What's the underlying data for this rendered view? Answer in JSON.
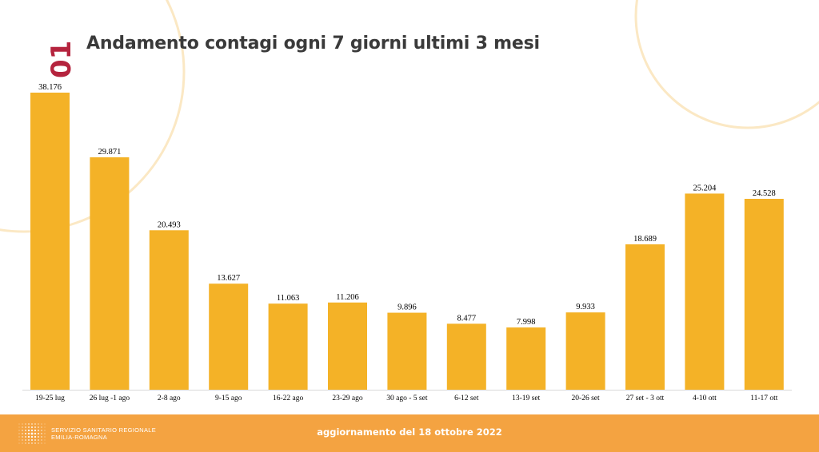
{
  "slide_number": "01",
  "title": "Andamento contagi ogni 7 giorni ultimi 3 mesi",
  "colors": {
    "bar": "#f4b227",
    "accent_number": "#b5243e",
    "footer": "#f4a341",
    "deco_circle": "#fbe8c4"
  },
  "chart_data": {
    "type": "bar",
    "title": "Andamento contagi ogni 7 giorni ultimi 3 mesi",
    "xlabel": "",
    "ylabel": "",
    "grid": false,
    "ylim": [
      0,
      40000
    ],
    "categories": [
      "19-25 lug",
      "26 lug -1 ago",
      "2-8 ago",
      "9-15 ago",
      "16-22 ago",
      "23-29 ago",
      "30 ago - 5 set",
      "6-12 set",
      "13-19 set",
      "20-26 set",
      "27 set - 3 ott",
      "4-10 ott",
      "11-17 ott"
    ],
    "values": [
      38176,
      29871,
      20493,
      13627,
      11063,
      11206,
      9896,
      8477,
      7998,
      9933,
      18689,
      25204,
      24528
    ],
    "data_labels": [
      "38.176",
      "29.871",
      "20.493",
      "13.627",
      "11.063",
      "11.206",
      "9.896",
      "8.477",
      "7.998",
      "9.933",
      "18.689",
      "25.204",
      "24.528"
    ]
  },
  "footer": {
    "org_line1": "SERVIZIO SANITARIO REGIONALE",
    "org_line2": "EMILIA-ROMAGNA",
    "updated": "aggiornamento del 18 ottobre 2022"
  }
}
